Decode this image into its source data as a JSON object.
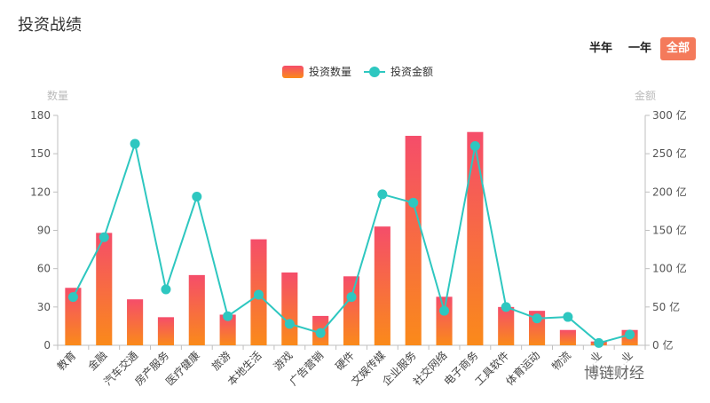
{
  "page": {
    "title": "投资战绩",
    "range_buttons": {
      "half_year": "半年",
      "one_year": "一年",
      "all": "全部"
    },
    "watermark": "博链财经"
  },
  "colors": {
    "bar_top": "#f54d6a",
    "bar_bottom": "#fa8a1a",
    "line": "#2ec7c0",
    "axis": "#bfbfbf",
    "text": "#333333",
    "active_button": "#f47a5b"
  },
  "chart_data": {
    "type": "bar",
    "title": "",
    "categories": [
      "教育",
      "金融",
      "汽车交通",
      "房产服务",
      "医疗健康",
      "旅游",
      "本地生活",
      "游戏",
      "广告营销",
      "硬件",
      "文娱传媒",
      "企业服务",
      "社交网络",
      "电子商务",
      "工具软件",
      "体育运动",
      "物流",
      "…业",
      "新…业"
    ],
    "series": [
      {
        "name": "投资数量",
        "type": "bar",
        "axis": "left",
        "values": [
          45,
          88,
          36,
          22,
          55,
          24,
          83,
          57,
          23,
          54,
          93,
          164,
          38,
          167,
          30,
          27,
          12,
          3,
          12
        ]
      },
      {
        "name": "投资金额",
        "type": "line",
        "axis": "right",
        "values": [
          63,
          141,
          263,
          73,
          194,
          38,
          66,
          28,
          16,
          63,
          197,
          186,
          45,
          260,
          50,
          35,
          37,
          3,
          14
        ]
      }
    ],
    "y_left": {
      "label": "数量",
      "min": 0,
      "max": 180,
      "ticks": [
        0,
        30,
        60,
        90,
        120,
        150,
        180
      ],
      "tick_suffix": ""
    },
    "y_right": {
      "label": "金额",
      "min": 0,
      "max": 300,
      "ticks": [
        0,
        50,
        100,
        150,
        200,
        250,
        300
      ],
      "tick_suffix": " 亿"
    },
    "grid": false,
    "legend": "top-center"
  }
}
